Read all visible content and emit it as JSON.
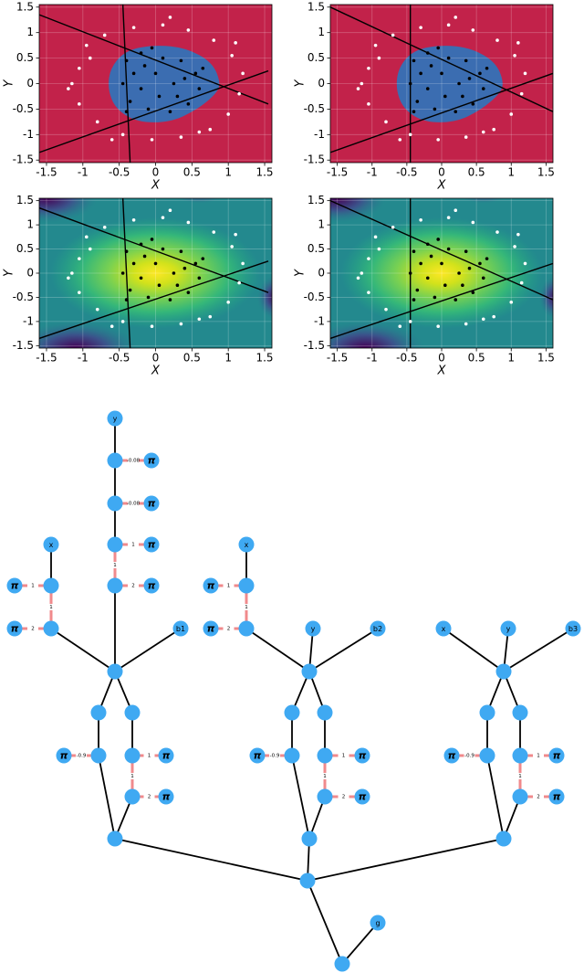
{
  "chart_data": [
    {
      "type": "scatter",
      "xlabel": "X",
      "ylabel": "Y",
      "xlim": [
        -1.6,
        1.6
      ],
      "ylim": [
        -1.55,
        1.55
      ],
      "xticks": [
        -1.5,
        -1,
        -0.5,
        0,
        0.5,
        1,
        1.5
      ],
      "yticks": [
        -1.5,
        -1,
        -0.5,
        0,
        0.5,
        1,
        1.5
      ],
      "grid": true,
      "background": [
        "#c2224a",
        "#3b6db1"
      ],
      "series": [
        {
          "color": "#ffffff",
          "x": [
            -1.05,
            -0.95,
            -0.7,
            -0.3,
            0.1,
            0.45,
            0.8,
            1.05,
            1.2,
            1.15,
            1.0,
            0.75,
            0.35,
            -0.05,
            -0.45,
            -0.8,
            -1.05,
            -1.15,
            -0.9,
            0.6,
            1.1,
            -0.6,
            0.2,
            -1.2
          ],
          "values": [
            0.3,
            0.75,
            0.95,
            1.1,
            1.15,
            1.05,
            0.85,
            0.55,
            0.2,
            -0.2,
            -0.6,
            -0.9,
            -1.05,
            -1.1,
            -1.0,
            -0.75,
            -0.4,
            0.0,
            0.5,
            -0.95,
            0.8,
            -1.1,
            1.3,
            -0.1
          ]
        },
        {
          "color": "#000000",
          "x": [
            -0.4,
            -0.2,
            0.1,
            0.35,
            0.55,
            0.6,
            0.45,
            0.2,
            -0.1,
            -0.35,
            -0.45,
            -0.3,
            0.0,
            0.25,
            0.05,
            -0.2,
            0.4,
            -0.15,
            0.3,
            -0.4,
            0.65,
            -0.05
          ],
          "values": [
            0.45,
            0.6,
            0.5,
            0.45,
            0.2,
            -0.1,
            -0.4,
            -0.55,
            -0.5,
            -0.35,
            0.0,
            0.2,
            0.2,
            0.0,
            -0.25,
            -0.1,
            0.1,
            0.35,
            -0.25,
            -0.55,
            0.3,
            0.7
          ]
        },
        {
          "type": "line",
          "color": "#000000",
          "x": [
            -1.6,
            1.55
          ],
          "values": [
            1.35,
            -0.4
          ]
        },
        {
          "type": "line",
          "color": "#000000",
          "x": [
            -1.6,
            1.55
          ],
          "values": [
            -1.35,
            0.25
          ]
        },
        {
          "type": "line",
          "color": "#000000",
          "x": [
            -0.45,
            -0.35
          ],
          "values": [
            1.55,
            -1.55
          ]
        }
      ]
    },
    {
      "type": "scatter",
      "xlabel": "X",
      "ylabel": "Y",
      "xlim": [
        -1.6,
        1.6
      ],
      "ylim": [
        -1.55,
        1.55
      ],
      "xticks": [
        -1.5,
        -1,
        -0.5,
        0,
        0.5,
        1,
        1.5
      ],
      "yticks": [
        -1.5,
        -1,
        -0.5,
        0,
        0.5,
        1,
        1.5
      ],
      "grid": true,
      "background": [
        "#c2224a",
        "#3b6db1"
      ],
      "series": [
        {
          "color": "#ffffff",
          "x": [
            -1.05,
            -0.95,
            -0.7,
            -0.3,
            0.1,
            0.45,
            0.8,
            1.05,
            1.2,
            1.15,
            1.0,
            0.75,
            0.35,
            -0.05,
            -0.45,
            -0.8,
            -1.05,
            -1.15,
            -0.9,
            0.6,
            1.1,
            -0.6,
            0.2,
            -1.2
          ],
          "values": [
            0.3,
            0.75,
            0.95,
            1.1,
            1.15,
            1.05,
            0.85,
            0.55,
            0.2,
            -0.2,
            -0.6,
            -0.9,
            -1.05,
            -1.1,
            -1.0,
            -0.75,
            -0.4,
            0.0,
            0.5,
            -0.95,
            0.8,
            -1.1,
            1.3,
            -0.1
          ]
        },
        {
          "color": "#000000",
          "x": [
            -0.4,
            -0.2,
            0.1,
            0.35,
            0.55,
            0.6,
            0.45,
            0.2,
            -0.1,
            -0.35,
            -0.45,
            -0.3,
            0.0,
            0.25,
            0.05,
            -0.2,
            0.4,
            -0.15,
            0.3,
            -0.4,
            0.65,
            -0.05
          ],
          "values": [
            0.45,
            0.6,
            0.5,
            0.45,
            0.2,
            -0.1,
            -0.4,
            -0.55,
            -0.5,
            -0.35,
            0.0,
            0.2,
            0.2,
            0.0,
            -0.25,
            -0.1,
            0.1,
            0.35,
            -0.25,
            -0.55,
            0.3,
            0.7
          ]
        },
        {
          "type": "line",
          "color": "#000000",
          "x": [
            -1.6,
            1.6
          ],
          "values": [
            1.5,
            -0.55
          ]
        },
        {
          "type": "line",
          "color": "#000000",
          "x": [
            -1.6,
            1.6
          ],
          "values": [
            -1.35,
            0.2
          ]
        },
        {
          "type": "line",
          "color": "#000000",
          "x": [
            -0.45,
            -0.45
          ],
          "values": [
            1.55,
            -1.55
          ]
        }
      ]
    },
    {
      "type": "scatter",
      "xlabel": "X",
      "ylabel": "Y",
      "xlim": [
        -1.6,
        1.6
      ],
      "ylim": [
        -1.55,
        1.55
      ],
      "xticks": [
        -1.5,
        -1,
        -0.5,
        0,
        0.5,
        1,
        1.5
      ],
      "yticks": [
        -1.5,
        -1,
        -0.5,
        0,
        0.5,
        1,
        1.5
      ],
      "grid": true,
      "colormap": "viridis",
      "series": [
        {
          "color": "#ffffff",
          "x": [
            -1.05,
            -0.95,
            -0.7,
            -0.3,
            0.1,
            0.45,
            0.8,
            1.05,
            1.2,
            1.15,
            1.0,
            0.75,
            0.35,
            -0.05,
            -0.45,
            -0.8,
            -1.05,
            -1.15,
            -0.9,
            0.6,
            1.1,
            -0.6,
            0.2,
            -1.2
          ],
          "values": [
            0.3,
            0.75,
            0.95,
            1.1,
            1.15,
            1.05,
            0.85,
            0.55,
            0.2,
            -0.2,
            -0.6,
            -0.9,
            -1.05,
            -1.1,
            -1.0,
            -0.75,
            -0.4,
            0.0,
            0.5,
            -0.95,
            0.8,
            -1.1,
            1.3,
            -0.1
          ]
        },
        {
          "color": "#000000",
          "x": [
            -0.4,
            -0.2,
            0.1,
            0.35,
            0.55,
            0.6,
            0.45,
            0.2,
            -0.1,
            -0.35,
            -0.45,
            -0.3,
            0.0,
            0.25,
            0.05,
            -0.2,
            0.4,
            -0.15,
            0.3,
            -0.4,
            0.65,
            -0.05
          ],
          "values": [
            0.45,
            0.6,
            0.5,
            0.45,
            0.2,
            -0.1,
            -0.4,
            -0.55,
            -0.5,
            -0.35,
            0.0,
            0.2,
            0.2,
            0.0,
            -0.25,
            -0.1,
            0.1,
            0.35,
            -0.25,
            -0.55,
            0.3,
            0.7
          ]
        },
        {
          "type": "line",
          "color": "#000000",
          "x": [
            -1.6,
            1.55
          ],
          "values": [
            1.35,
            -0.4
          ]
        },
        {
          "type": "line",
          "color": "#000000",
          "x": [
            -1.6,
            1.55
          ],
          "values": [
            -1.35,
            0.25
          ]
        },
        {
          "type": "line",
          "color": "#000000",
          "x": [
            -0.45,
            -0.35
          ],
          "values": [
            1.55,
            -1.55
          ]
        }
      ]
    },
    {
      "type": "scatter",
      "xlabel": "X",
      "ylabel": "Y",
      "xlim": [
        -1.6,
        1.6
      ],
      "ylim": [
        -1.55,
        1.55
      ],
      "xticks": [
        -1.5,
        -1,
        -0.5,
        0,
        0.5,
        1,
        1.5
      ],
      "yticks": [
        -1.5,
        -1,
        -0.5,
        0,
        0.5,
        1,
        1.5
      ],
      "grid": true,
      "colormap": "viridis",
      "series": [
        {
          "color": "#ffffff",
          "x": [
            -1.05,
            -0.95,
            -0.7,
            -0.3,
            0.1,
            0.45,
            0.8,
            1.05,
            1.2,
            1.15,
            1.0,
            0.75,
            0.35,
            -0.05,
            -0.45,
            -0.8,
            -1.05,
            -1.15,
            -0.9,
            0.6,
            1.1,
            -0.6,
            0.2,
            -1.2
          ],
          "values": [
            0.3,
            0.75,
            0.95,
            1.1,
            1.15,
            1.05,
            0.85,
            0.55,
            0.2,
            -0.2,
            -0.6,
            -0.9,
            -1.05,
            -1.1,
            -1.0,
            -0.75,
            -0.4,
            0.0,
            0.5,
            -0.95,
            0.8,
            -1.1,
            1.3,
            -0.1
          ]
        },
        {
          "color": "#000000",
          "x": [
            -0.4,
            -0.2,
            0.1,
            0.35,
            0.55,
            0.6,
            0.45,
            0.2,
            -0.1,
            -0.35,
            -0.45,
            -0.3,
            0.0,
            0.25,
            0.05,
            -0.2,
            0.4,
            -0.15,
            0.3,
            -0.4,
            0.65,
            -0.05
          ],
          "values": [
            0.45,
            0.6,
            0.5,
            0.45,
            0.2,
            -0.1,
            -0.4,
            -0.55,
            -0.5,
            -0.35,
            0.0,
            0.2,
            0.2,
            0.0,
            -0.25,
            -0.1,
            0.1,
            0.35,
            -0.25,
            -0.55,
            0.3,
            0.7
          ]
        },
        {
          "type": "line",
          "color": "#000000",
          "x": [
            -1.6,
            1.6
          ],
          "values": [
            1.5,
            -0.55
          ]
        },
        {
          "type": "line",
          "color": "#000000",
          "x": [
            -1.6,
            1.6
          ],
          "values": [
            -1.35,
            0.2
          ]
        },
        {
          "type": "line",
          "color": "#000000",
          "x": [
            -0.45,
            -0.45
          ],
          "values": [
            1.55,
            -1.55
          ]
        }
      ]
    }
  ],
  "diagram": {
    "nodes": [
      "y",
      "π",
      "π",
      "π",
      "π",
      "x",
      "π",
      "π",
      "b1",
      "π",
      "π",
      "π",
      "x",
      "π",
      "π",
      "y",
      "b2",
      "π",
      "π",
      "π",
      "x",
      "y",
      "b3",
      "π",
      "π",
      "π",
      "g"
    ],
    "edge_labels": [
      "-0.08",
      "-0.08",
      "1",
      "1",
      "2",
      "1",
      "1",
      "2",
      "-0.9",
      "1",
      "1",
      "2",
      "1",
      "1",
      "2",
      "-0.9",
      "1",
      "1",
      "2",
      "-0.9",
      "1",
      "1",
      "2"
    ]
  }
}
